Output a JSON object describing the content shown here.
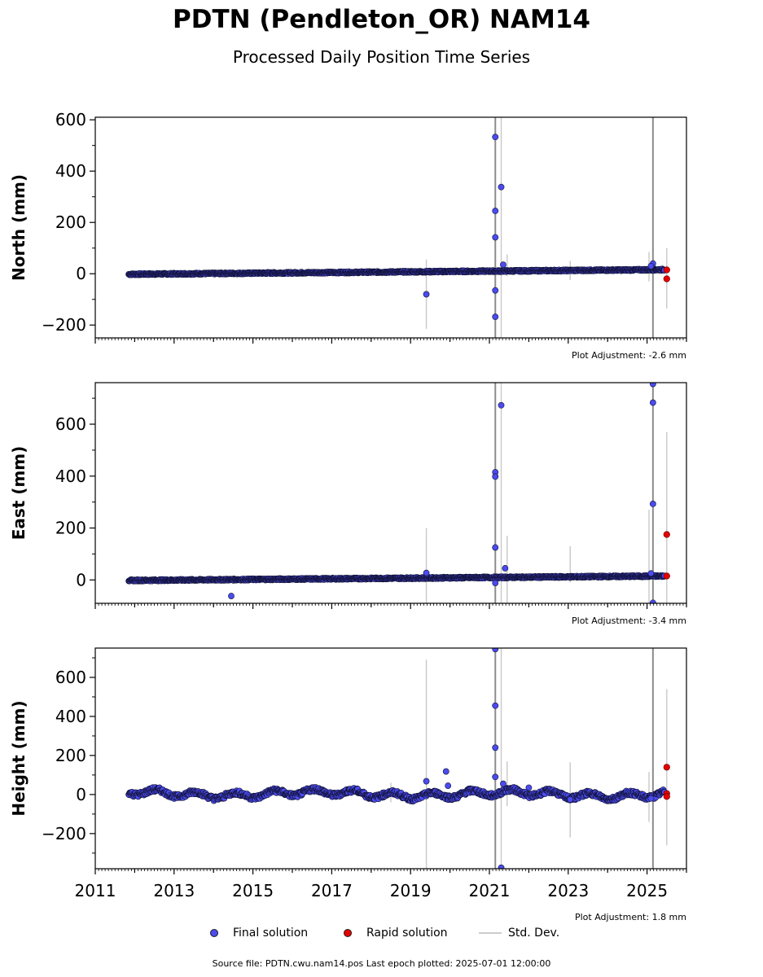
{
  "title": "PDTN (Pendleton_OR) NAM14",
  "subtitle": "Processed Daily Position Time Series",
  "legend": {
    "final": "Final solution",
    "rapid": "Rapid solution",
    "stddev": "Std. Dev."
  },
  "footer": "Source file: PDTN.cwu.nam14.pos  Last epoch plotted: 2025-07-01 12:00:00",
  "colors": {
    "final": "#4b4bef",
    "rapid": "#e60000",
    "stddev": "#c8c8c8",
    "edge": "#111133"
  },
  "chart_data": [
    {
      "type": "scatter",
      "ylabel": "North (mm)",
      "xlim": [
        2011,
        2026
      ],
      "ylim": [
        -250,
        610
      ],
      "yticks": [
        -200,
        0,
        200,
        400,
        600
      ],
      "adjustment": "Plot Adjustment: -2.6 mm",
      "trend": {
        "start_year": 2011.85,
        "start_value": -2,
        "end_year": 2025.45,
        "end_value": 16,
        "noise": 3
      },
      "outliers": [
        {
          "x": 2019.4,
          "y": -80
        },
        {
          "x": 2021.15,
          "y": 533
        },
        {
          "x": 2021.15,
          "y": 245
        },
        {
          "x": 2021.15,
          "y": 142
        },
        {
          "x": 2021.15,
          "y": -65
        },
        {
          "x": 2021.15,
          "y": -168
        },
        {
          "x": 2021.3,
          "y": 338
        },
        {
          "x": 2021.35,
          "y": 35
        },
        {
          "x": 2025.15,
          "y": 40
        },
        {
          "x": 2025.1,
          "y": 30
        }
      ],
      "rapid": [
        {
          "x": 2025.5,
          "y": 15
        },
        {
          "x": 2025.5,
          "y": -20
        }
      ],
      "errorbars": [
        {
          "x": 2019.4,
          "lo": -215,
          "hi": 55
        },
        {
          "x": 2021.15,
          "lo": -250,
          "hi": 610,
          "dark": true
        },
        {
          "x": 2021.3,
          "lo": -250,
          "hi": 610
        },
        {
          "x": 2021.45,
          "lo": -10,
          "hi": 75
        },
        {
          "x": 2023.05,
          "lo": -25,
          "hi": 50
        },
        {
          "x": 2025.05,
          "lo": -30,
          "hi": 85
        },
        {
          "x": 2025.15,
          "lo": -250,
          "hi": 610,
          "dark": true
        },
        {
          "x": 2025.5,
          "lo": -135,
          "hi": 100
        }
      ]
    },
    {
      "type": "scatter",
      "ylabel": "East (mm)",
      "xlim": [
        2011,
        2026
      ],
      "ylim": [
        -90,
        760
      ],
      "yticks": [
        0,
        200,
        400,
        600
      ],
      "adjustment": "Plot Adjustment: -3.4 mm",
      "trend": {
        "start_year": 2011.85,
        "start_value": -2,
        "end_year": 2025.45,
        "end_value": 15,
        "noise": 3
      },
      "outliers": [
        {
          "x": 2014.45,
          "y": -62
        },
        {
          "x": 2019.4,
          "y": 27
        },
        {
          "x": 2021.15,
          "y": 415
        },
        {
          "x": 2021.15,
          "y": 398
        },
        {
          "x": 2021.15,
          "y": 125
        },
        {
          "x": 2021.15,
          "y": -12
        },
        {
          "x": 2021.3,
          "y": 673
        },
        {
          "x": 2021.4,
          "y": 45
        },
        {
          "x": 2025.15,
          "y": 755
        },
        {
          "x": 2025.15,
          "y": 683
        },
        {
          "x": 2025.15,
          "y": 293
        },
        {
          "x": 2025.1,
          "y": 25
        },
        {
          "x": 2025.15,
          "y": -88
        }
      ],
      "rapid": [
        {
          "x": 2025.5,
          "y": 175
        },
        {
          "x": 2025.5,
          "y": 15
        }
      ],
      "errorbars": [
        {
          "x": 2019.4,
          "lo": -90,
          "hi": 200
        },
        {
          "x": 2021.15,
          "lo": -90,
          "hi": 760,
          "dark": true
        },
        {
          "x": 2021.3,
          "lo": -90,
          "hi": 760
        },
        {
          "x": 2021.45,
          "lo": -90,
          "hi": 170
        },
        {
          "x": 2023.05,
          "lo": -10,
          "hi": 130
        },
        {
          "x": 2025.05,
          "lo": -90,
          "hi": 270
        },
        {
          "x": 2025.15,
          "lo": -90,
          "hi": 760,
          "dark": true
        },
        {
          "x": 2025.5,
          "lo": -90,
          "hi": 570
        }
      ]
    },
    {
      "type": "scatter",
      "ylabel": "Height (mm)",
      "xlim": [
        2011,
        2026
      ],
      "ylim": [
        -380,
        750
      ],
      "yticks": [
        -200,
        0,
        200,
        400,
        600
      ],
      "xticks": [
        2011,
        2013,
        2015,
        2017,
        2019,
        2021,
        2023,
        2025
      ],
      "adjustment": "Plot Adjustment: 1.8 mm",
      "trend": {
        "start_year": 2011.85,
        "start_value": 5,
        "end_year": 2025.45,
        "end_value": 0,
        "noise": 12,
        "seasonal": 15
      },
      "outliers": [
        {
          "x": 2019.4,
          "y": 68
        },
        {
          "x": 2019.9,
          "y": 118
        },
        {
          "x": 2019.95,
          "y": 45
        },
        {
          "x": 2021.15,
          "y": 745
        },
        {
          "x": 2021.15,
          "y": 455
        },
        {
          "x": 2021.15,
          "y": 240
        },
        {
          "x": 2021.15,
          "y": 90
        },
        {
          "x": 2021.3,
          "y": -375
        },
        {
          "x": 2021.35,
          "y": 55
        },
        {
          "x": 2022.0,
          "y": 35
        },
        {
          "x": 2023.05,
          "y": -25
        },
        {
          "x": 2025.1,
          "y": -20
        }
      ],
      "rapid": [
        {
          "x": 2025.5,
          "y": 140
        },
        {
          "x": 2025.5,
          "y": 5
        },
        {
          "x": 2025.5,
          "y": -10
        }
      ],
      "errorbars": [
        {
          "x": 2018.5,
          "lo": -40,
          "hi": 60
        },
        {
          "x": 2019.4,
          "lo": -380,
          "hi": 690
        },
        {
          "x": 2021.15,
          "lo": -380,
          "hi": 750,
          "dark": true
        },
        {
          "x": 2021.3,
          "lo": -380,
          "hi": 750
        },
        {
          "x": 2021.45,
          "lo": -60,
          "hi": 170
        },
        {
          "x": 2023.05,
          "lo": -220,
          "hi": 165
        },
        {
          "x": 2025.05,
          "lo": -140,
          "hi": 115
        },
        {
          "x": 2025.15,
          "lo": -380,
          "hi": 750,
          "dark": true
        },
        {
          "x": 2025.5,
          "lo": -260,
          "hi": 540
        }
      ]
    }
  ]
}
